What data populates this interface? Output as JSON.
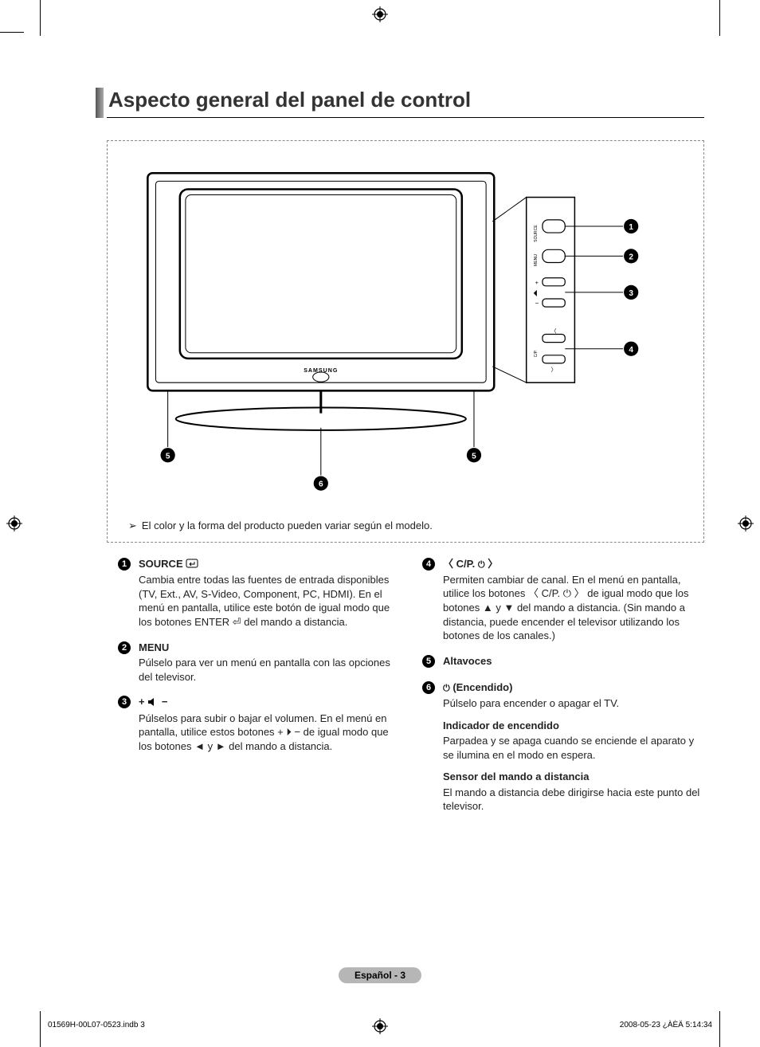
{
  "heading": "Aspecto general del panel de control",
  "diagram": {
    "brand_label": "SAMSUNG",
    "side_buttons": [
      {
        "marker": "1",
        "label": "SOURCE"
      },
      {
        "marker": "2",
        "label": "MENU"
      },
      {
        "marker": "3",
        "label": "+ / −"
      },
      {
        "marker": "4",
        "label": "C/P."
      }
    ],
    "bottom_markers": {
      "left": "5",
      "right": "5",
      "center": "6"
    },
    "note_text": "El color y la forma del producto pueden variar según el modelo.",
    "colors": {
      "stroke": "#000000",
      "dashed_border": "#888888",
      "marker_fill": "#000000",
      "marker_text": "#ffffff",
      "background": "#ffffff"
    }
  },
  "left_column": [
    {
      "num": "1",
      "title": "SOURCE",
      "title_has_enter_icon": true,
      "body": "Cambia entre todas las fuentes de entrada disponibles (TV, Ext., AV, S-Video, Component, PC, HDMI). En el menú en pantalla, utilice este botón de igual modo que los botones ENTER ⏎ del mando a distancia."
    },
    {
      "num": "2",
      "title": "MENU",
      "body": "Púlselo para ver un menú en pantalla con las opciones del televisor."
    },
    {
      "num": "3",
      "title_is_volume_glyph": true,
      "body": "Púlselos para subir o bajar el volumen. En el menú en pantalla, utilice estos botones + ⏵ − de igual modo que los botones ◄ y ► del mando a distancia."
    }
  ],
  "right_column": [
    {
      "num": "4",
      "title_is_channel_glyph": true,
      "body": "Permiten cambiar de canal. En el menú en pantalla, utilice los botones 〈 C/P. ⏻ 〉 de igual modo que los botones ▲ y ▼ del mando a distancia. (Sin mando a distancia, puede encender el televisor utilizando los botones de los canales.)"
    },
    {
      "num": "5",
      "title": "Altavoces",
      "body": ""
    },
    {
      "num": "6",
      "title": "(Encendido)",
      "title_prefix_power": true,
      "body": "Púlselo para encender o apagar el TV.",
      "subs": [
        {
          "title": "Indicador de encendido",
          "body": "Parpadea y se apaga cuando se enciende el aparato y se ilumina en el modo en espera."
        },
        {
          "title": "Sensor del mando a distancia",
          "body": "El mando a distancia debe dirigirse hacia este punto del televisor."
        }
      ]
    }
  ],
  "footer": {
    "pill": "Español - 3",
    "left": "01569H-00L07-0523.indb   3",
    "right": "2008-05-23   ¿ÀÈÄ 5:14:34"
  }
}
